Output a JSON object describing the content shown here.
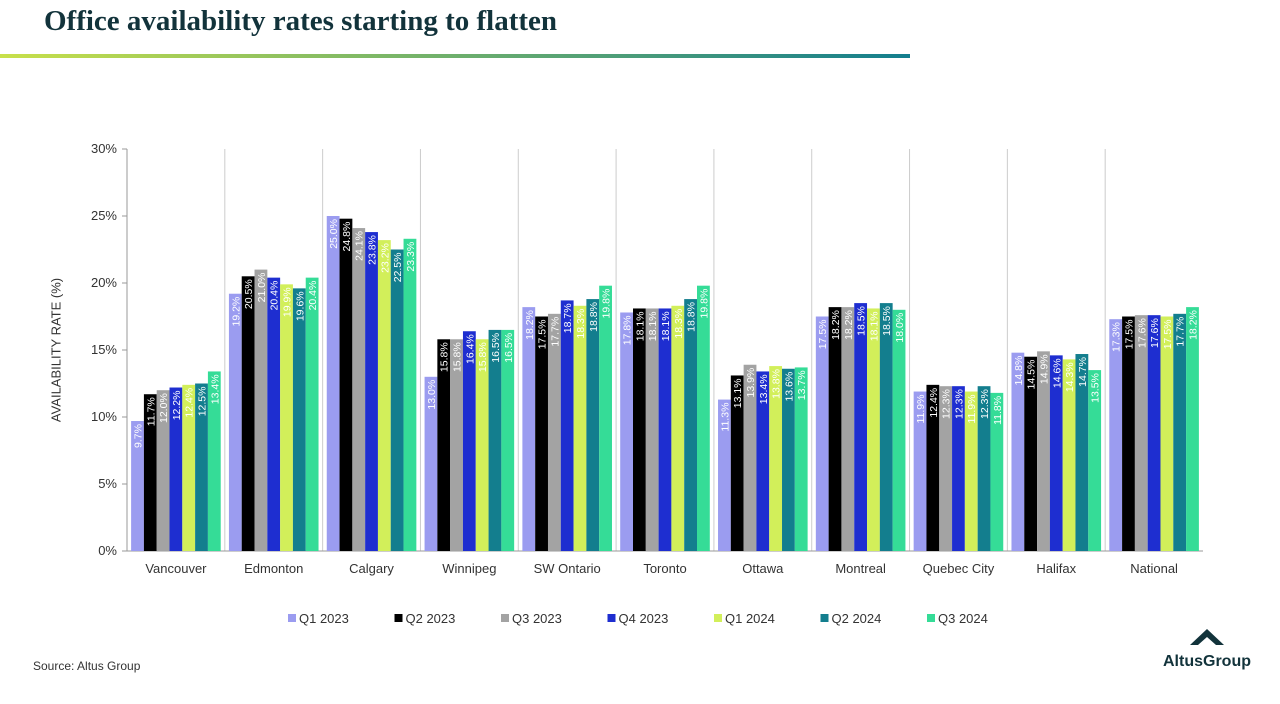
{
  "chart_data": {
    "type": "bar",
    "title": "Office availability rates starting to flatten",
    "y_label": "AVAILABILITY RATE (%)",
    "source": "Source: Altus Group",
    "logo_text": "AltusGroup",
    "categories": [
      "Vancouver",
      "Edmonton",
      "Calgary",
      "Winnipeg",
      "SW Ontario",
      "Toronto",
      "Ottawa",
      "Montreal",
      "Quebec City",
      "Halifax",
      "National"
    ],
    "series": [
      {
        "name": "Q1 2023",
        "color": "#9b9cf0",
        "values": [
          9.7,
          19.2,
          25.0,
          13.0,
          18.2,
          17.8,
          11.3,
          17.5,
          11.9,
          14.8,
          17.3
        ],
        "value_labels": [
          "9.7%",
          "19.2%",
          "25.0%",
          "13.0%",
          "18.2%",
          "17.8%",
          "11.3%",
          "17.5%",
          "11.9%",
          "14.8%",
          "17.3%"
        ]
      },
      {
        "name": "Q2 2023",
        "color": "#000000",
        "values": [
          11.7,
          20.5,
          24.8,
          15.8,
          17.5,
          18.1,
          13.1,
          18.2,
          12.4,
          14.5,
          17.5
        ],
        "value_labels": [
          "11.7%",
          "20.5%",
          "24.8%",
          "15.8%",
          "17.5%",
          "18.1%",
          "13.1%",
          "18.2%",
          "12.4%",
          "14.5%",
          "17.5%"
        ]
      },
      {
        "name": "Q3 2023",
        "color": "#a3a3a3",
        "values": [
          12.0,
          21.0,
          24.1,
          15.8,
          17.7,
          18.1,
          13.9,
          18.2,
          12.3,
          14.9,
          17.6
        ],
        "value_labels": [
          "12.0%",
          "21.0%",
          "24.1%",
          "15.8%",
          "17.7%",
          "18.1%",
          "13.9%",
          "18.2%",
          "12.3%",
          "14.9%",
          "17.6%"
        ]
      },
      {
        "name": "Q4 2023",
        "color": "#1e2ed0",
        "values": [
          12.2,
          20.4,
          23.8,
          16.4,
          18.7,
          18.1,
          13.4,
          18.5,
          12.3,
          14.6,
          17.6
        ],
        "value_labels": [
          "12.2%",
          "20.4%",
          "23.8%",
          "16.4%",
          "18.7%",
          "18.1%",
          "13.4%",
          "18.5%",
          "12.3%",
          "14.6%",
          "17.6%"
        ]
      },
      {
        "name": "Q1 2024",
        "color": "#d2ef5a",
        "values": [
          12.4,
          19.9,
          23.2,
          15.8,
          18.3,
          18.3,
          13.8,
          18.1,
          11.9,
          14.3,
          17.5
        ],
        "value_labels": [
          "12.4%",
          "19.9%",
          "23.2%",
          "15.8%",
          "18.3%",
          "18.3%",
          "13.8%",
          "18.1%",
          "11.9%",
          "14.3%",
          "17.5%"
        ]
      },
      {
        "name": "Q2 2024",
        "color": "#137e8e",
        "values": [
          12.5,
          19.6,
          22.5,
          16.5,
          18.8,
          18.8,
          13.6,
          18.5,
          12.3,
          14.7,
          17.7
        ],
        "value_labels": [
          "12.5%",
          "19.6%",
          "22.5%",
          "16.5%",
          "18.8%",
          "18.8%",
          "13.6%",
          "18.5%",
          "12.3%",
          "14.7%",
          "17.7%"
        ]
      },
      {
        "name": "Q3 2024",
        "color": "#35dc97",
        "values": [
          13.4,
          20.4,
          23.3,
          16.5,
          19.8,
          19.8,
          13.7,
          18.0,
          11.8,
          13.5,
          18.2
        ],
        "value_labels": [
          "13.4%",
          "20.4%",
          "23.3%",
          "16.5%",
          "19.8%",
          "19.8%",
          "13.7%",
          "18.0%",
          "11.8%",
          "13.5%",
          "18.2%"
        ]
      }
    ],
    "ylim": [
      0,
      30
    ],
    "yticks": [
      {
        "value": 0,
        "label": "0%"
      },
      {
        "value": 5,
        "label": "5%"
      },
      {
        "value": 10,
        "label": "10%"
      },
      {
        "value": 15,
        "label": "15%"
      },
      {
        "value": 20,
        "label": "20%"
      },
      {
        "value": 25,
        "label": "25%"
      },
      {
        "value": 30,
        "label": "30%"
      }
    ],
    "category_separators": true
  }
}
